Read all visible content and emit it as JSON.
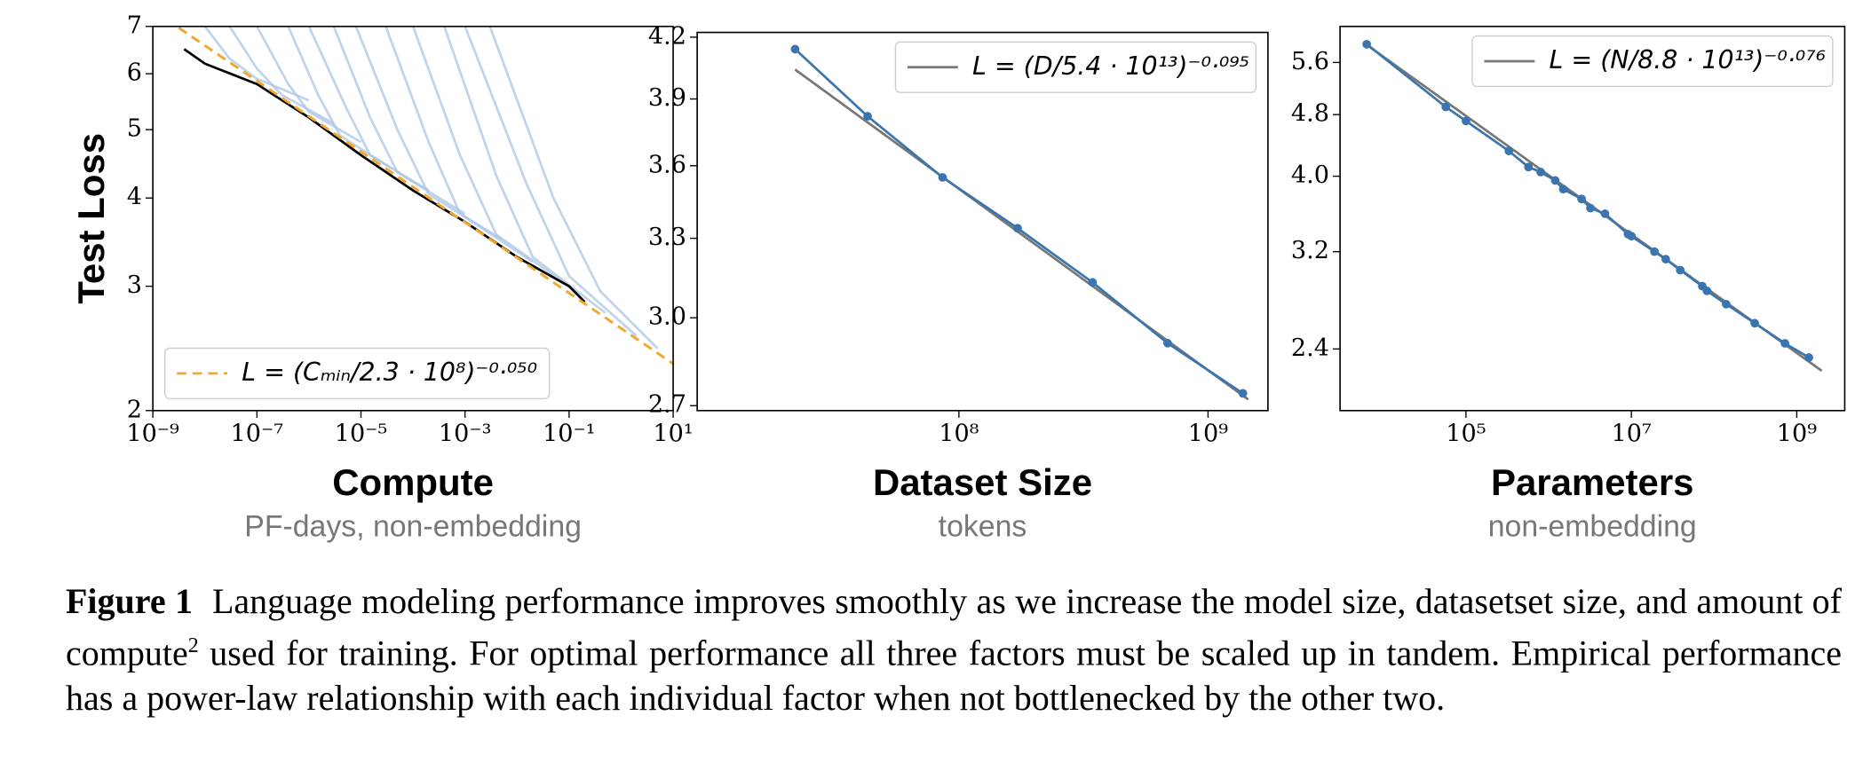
{
  "chart_data": [
    {
      "type": "line",
      "xscale": "log",
      "yscale": "log",
      "y_label": "Test Loss",
      "x_label": "Compute",
      "x_sublabel": "PF-days, non-embedding",
      "xlim": [
        1e-09,
        10
      ],
      "ylim": [
        2,
        7
      ],
      "xticks": [
        {
          "value": 1e-09,
          "label": "10⁻⁹"
        },
        {
          "value": 1e-07,
          "label": "10⁻⁷"
        },
        {
          "value": 1e-05,
          "label": "10⁻⁵"
        },
        {
          "value": 0.001,
          "label": "10⁻³"
        },
        {
          "value": 0.1,
          "label": "10⁻¹"
        },
        {
          "value": 10,
          "label": "10¹"
        }
      ],
      "yticks": [
        2,
        3,
        4,
        5,
        6,
        7
      ],
      "legend": "lower left",
      "series": [
        {
          "color": "#a9c6e3",
          "x": [
            1e-08,
            3e-08,
            1e-07,
            1e-06
          ],
          "values": [
            7,
            6.3,
            5.9,
            5.5
          ]
        },
        {
          "color": "#a9c6e3",
          "x": [
            3e-08,
            1e-07,
            3e-07,
            3e-06
          ],
          "values": [
            7,
            6.1,
            5.6,
            5.1
          ]
        },
        {
          "color": "#a9c6e3",
          "x": [
            1e-07,
            4e-07,
            1e-06,
            1e-05
          ],
          "values": [
            7,
            5.8,
            5.3,
            4.8
          ]
        },
        {
          "color": "#a9c6e3",
          "x": [
            4e-07,
            1.5e-06,
            4e-06,
            4e-05
          ],
          "values": [
            7,
            5.6,
            4.9,
            4.4
          ]
        },
        {
          "color": "#a9c6e3",
          "x": [
            1e-06,
            5e-06,
            1.5e-05,
            0.0002
          ],
          "values": [
            7,
            5.4,
            4.6,
            4.1
          ]
        },
        {
          "color": "#a9c6e3",
          "x": [
            3e-06,
            1.5e-05,
            5e-05,
            0.001
          ],
          "values": [
            7,
            5.2,
            4.35,
            3.8
          ]
        },
        {
          "color": "#a9c6e3",
          "x": [
            8e-06,
            5e-05,
            0.0002,
            0.005
          ],
          "values": [
            7,
            5.0,
            4.05,
            3.5
          ]
        },
        {
          "color": "#a9c6e3",
          "x": [
            3e-05,
            0.0002,
            0.0008,
            0.02
          ],
          "values": [
            7,
            4.8,
            3.8,
            3.25
          ]
        },
        {
          "color": "#a9c6e3",
          "x": [
            0.0001,
            0.0008,
            0.004,
            0.1
          ],
          "values": [
            7,
            4.6,
            3.55,
            3.0
          ]
        },
        {
          "color": "#a9c6e3",
          "x": [
            0.0004,
            0.004,
            0.02,
            0.5
          ],
          "values": [
            7,
            4.3,
            3.3,
            2.75
          ]
        },
        {
          "color": "#a9c6e3",
          "x": [
            0.001,
            0.015,
            0.1,
            2
          ],
          "values": [
            7,
            4.2,
            3.1,
            2.55
          ]
        },
        {
          "color": "#a9c6e3",
          "x": [
            0.003,
            0.05,
            0.4,
            5
          ],
          "values": [
            7,
            4.0,
            2.95,
            2.45
          ]
        },
        {
          "color": "#000000",
          "x": [
            4e-09,
            1e-08,
            1e-07,
            1e-06,
            1e-05,
            0.0001,
            0.001,
            0.01,
            0.1,
            0.2
          ],
          "values": [
            6.5,
            6.2,
            5.8,
            5.2,
            4.6,
            4.1,
            3.7,
            3.3,
            3.0,
            2.85
          ]
        },
        {
          "name": "L = (Cₘᵢₙ/2.3 · 10⁸)⁻⁰·⁰⁵⁰",
          "color": "#f0a830",
          "dashed": true,
          "x": [
            1e-09,
            10
          ],
          "values": [
            7.38,
            2.33
          ]
        }
      ]
    },
    {
      "type": "line",
      "xscale": "log",
      "yscale": "log",
      "x_label": "Dataset Size",
      "x_sublabel": "tokens",
      "xlim": [
        8900000.0,
        1740000000.0
      ],
      "ylim": [
        2.684,
        4.224
      ],
      "xticks": [
        {
          "value": 100000000.0,
          "label": "10⁸"
        },
        {
          "value": 1000000000.0,
          "label": "10⁹"
        }
      ],
      "yticks": [
        2.7,
        {
          "value": 3,
          "label": "3.0"
        },
        3.3,
        3.6,
        3.9,
        4.2
      ],
      "legend": "upper right",
      "series": [
        {
          "name": "L = (D/5.4 · 10¹³)⁻⁰·⁰⁹⁵",
          "color": "#777777",
          "x": [
            22000000.0,
            1450000000.0
          ],
          "values": [
            4.04,
            2.72
          ]
        },
        {
          "color": "#3a75b0",
          "markers": true,
          "x": [
            22000000.0,
            43000000.0,
            86000000.0,
            172000000.0,
            344000000.0,
            688000000.0,
            1380000000.0
          ],
          "values": [
            4.14,
            3.82,
            3.55,
            3.34,
            3.13,
            2.91,
            2.74
          ]
        }
      ]
    },
    {
      "type": "line",
      "xscale": "log",
      "yscale": "log",
      "x_label": "Parameters",
      "x_sublabel": "non-embedding",
      "xlim": [
        3000,
        3800000000.0
      ],
      "ylim": [
        2.0,
        6.23
      ],
      "xticks": [
        {
          "value": 100000.0,
          "label": "10⁵"
        },
        {
          "value": 10000000.0,
          "label": "10⁷"
        },
        {
          "value": 1000000000.0,
          "label": "10⁹"
        }
      ],
      "yticks": [
        2.4,
        3.2,
        {
          "value": 4,
          "label": "4.0"
        },
        4.8,
        5.6
      ],
      "legend": "upper right",
      "series": [
        {
          "name": "L = (N/8.8 · 10¹³)⁻⁰·⁰⁷⁶",
          "color": "#777777",
          "x": [
            6300,
            2000000000.0
          ],
          "values": [
            5.9,
            2.25
          ]
        },
        {
          "color": "#3a75b0",
          "markers": true,
          "x": [
            6300,
            57000,
            100000,
            330000,
            570000,
            800000,
            1200000.0,
            1500000.0,
            2500000.0,
            3200000.0,
            4800000.0,
            9100000.0,
            10000000.0,
            19000000.0,
            26000000.0,
            39000000.0,
            72000000.0,
            82000000.0,
            140000000.0,
            310000000.0,
            720000000.0,
            1400000000.0
          ],
          "values": [
            5.91,
            4.91,
            4.71,
            4.31,
            4.11,
            4.05,
            3.95,
            3.85,
            3.74,
            3.64,
            3.58,
            3.37,
            3.35,
            3.2,
            3.13,
            3.03,
            2.89,
            2.85,
            2.74,
            2.59,
            2.44,
            2.34
          ]
        }
      ]
    }
  ],
  "caption": {
    "label": "Figure 1",
    "text_before": "Language modeling performance improves smoothly as we increase the model size, datasetset size, and amount of compute",
    "footnote_mark": "2",
    "text_after": " used for training. For optimal performance all three factors must be scaled up in tandem. Empirical performance has a power-law relationship with each individual factor when not bottlenecked by the other two."
  }
}
